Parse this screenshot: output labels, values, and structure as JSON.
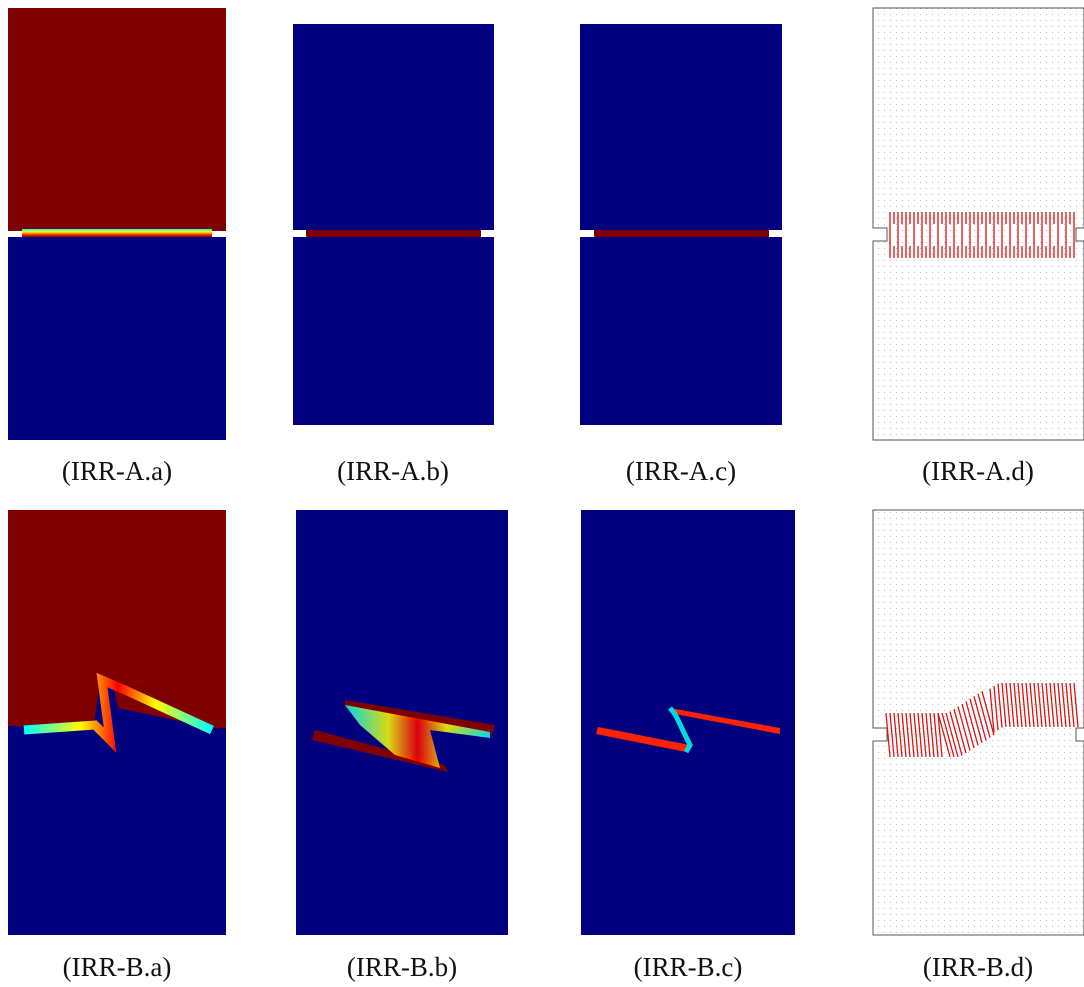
{
  "figure": {
    "captions": [
      "(IRR-A.a)",
      "(IRR-A.b)",
      "(IRR-A.c)",
      "(IRR-A.d)",
      "(IRR-B.a)",
      "(IRR-B.b)",
      "(IRR-B.c)",
      "(IRR-B.d)"
    ]
  }
}
